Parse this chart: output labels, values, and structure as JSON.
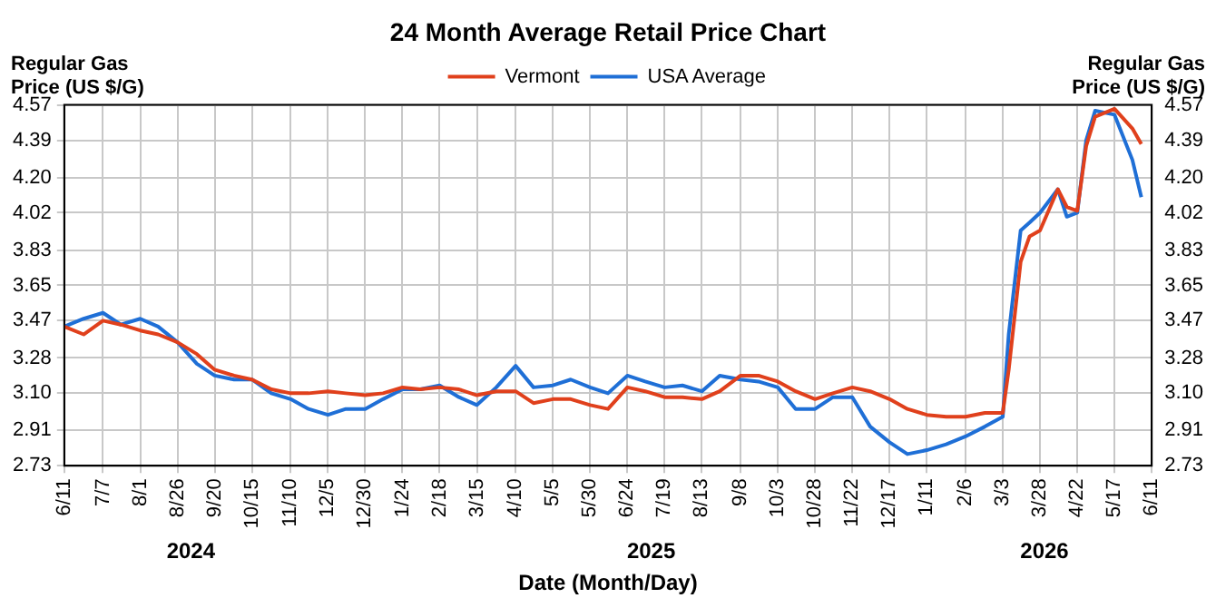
{
  "chart_data": {
    "type": "line",
    "title": "24 Month Average Retail Price Chart",
    "xlabel": "Date (Month/Day)",
    "ylabel": "Regular Gas Price (US $/G)",
    "y2label": "Regular Gas Price (US $/G)",
    "xlim": [
      "2024-06-11",
      "2026-06-11"
    ],
    "xticks": [
      {
        "value": "2024-06-11",
        "label": "6/11"
      },
      {
        "value": "2024-07-07",
        "label": "7/7"
      },
      {
        "value": "2024-08-01",
        "label": "8/1"
      },
      {
        "value": "2024-08-26",
        "label": "8/26"
      },
      {
        "value": "2024-09-20",
        "label": "9/20"
      },
      {
        "value": "2024-10-15",
        "label": "10/15"
      },
      {
        "value": "2024-11-10",
        "label": "11/10"
      },
      {
        "value": "2024-12-05",
        "label": "12/5"
      },
      {
        "value": "2024-12-30",
        "label": "12/30"
      },
      {
        "value": "2025-01-24",
        "label": "1/24"
      },
      {
        "value": "2025-02-18",
        "label": "2/18"
      },
      {
        "value": "2025-03-15",
        "label": "3/15"
      },
      {
        "value": "2025-04-10",
        "label": "4/10"
      },
      {
        "value": "2025-05-05",
        "label": "5/5"
      },
      {
        "value": "2025-05-30",
        "label": "5/30"
      },
      {
        "value": "2025-06-24",
        "label": "6/24"
      },
      {
        "value": "2025-07-19",
        "label": "7/19"
      },
      {
        "value": "2025-08-13",
        "label": "8/13"
      },
      {
        "value": "2025-09-08",
        "label": "9/8"
      },
      {
        "value": "2025-10-03",
        "label": "10/3"
      },
      {
        "value": "2025-10-28",
        "label": "10/28"
      },
      {
        "value": "2025-11-22",
        "label": "11/22"
      },
      {
        "value": "2025-12-17",
        "label": "12/17"
      },
      {
        "value": "2026-01-11",
        "label": "1/11"
      },
      {
        "value": "2026-02-06",
        "label": "2/6"
      },
      {
        "value": "2026-03-03",
        "label": "3/3"
      },
      {
        "value": "2026-03-28",
        "label": "3/28"
      },
      {
        "value": "2026-04-22",
        "label": "4/22"
      },
      {
        "value": "2026-05-17",
        "label": "5/17"
      },
      {
        "value": "2026-06-11",
        "label": "6/11"
      }
    ],
    "x2lim": [
      "2024-06-11",
      "2026-06-11"
    ],
    "x2ticks": [
      {
        "value": "2024-09-04",
        "label": "2024"
      },
      {
        "value": "2025-07-10",
        "label": "2025"
      },
      {
        "value": "2026-03-31",
        "label": "2026"
      }
    ],
    "ylim": [
      2.73,
      4.57
    ],
    "yticks": [
      2.73,
      2.91,
      {
        "value": 3.1,
        "label": "3.10"
      },
      3.28,
      3.47,
      3.65,
      3.83,
      4.02,
      {
        "value": 4.2,
        "label": "4.20"
      },
      4.39,
      4.57
    ],
    "y2lim": [
      2.73,
      4.57
    ],
    "y2ticks": [
      2.73,
      2.91,
      {
        "value": 3.1,
        "label": "3.10"
      },
      3.28,
      3.47,
      3.65,
      3.83,
      4.02,
      {
        "value": 4.2,
        "label": "4.20"
      },
      4.39,
      4.57
    ],
    "grid": true,
    "legend": "top",
    "marker": "none",
    "line_style": "solid",
    "x": [
      "2024-06-11",
      "2024-06-24",
      "2024-07-07",
      "2024-07-19",
      "2024-08-01",
      "2024-08-13",
      "2024-08-26",
      "2024-09-08",
      "2024-09-20",
      "2024-10-03",
      "2024-10-15",
      "2024-10-28",
      "2024-11-10",
      "2024-11-22",
      "2024-12-05",
      "2024-12-17",
      "2024-12-30",
      "2025-01-11",
      "2025-01-24",
      "2025-02-05",
      "2025-02-18",
      "2025-03-03",
      "2025-03-15",
      "2025-03-28",
      "2025-04-10",
      "2025-04-22",
      "2025-05-05",
      "2025-05-17",
      "2025-05-30",
      "2025-06-11",
      "2025-06-24",
      "2025-07-06",
      "2025-07-19",
      "2025-07-31",
      "2025-08-13",
      "2025-08-25",
      "2025-09-08",
      "2025-09-20",
      "2025-10-03",
      "2025-10-15",
      "2025-10-28",
      "2025-11-09",
      "2025-11-22",
      "2025-12-04",
      "2025-12-17",
      "2025-12-29",
      "2026-01-11",
      "2026-01-24",
      "2026-02-06",
      "2026-02-19",
      "2026-03-03",
      "2026-03-07",
      "2026-03-15",
      "2026-03-21",
      "2026-03-28",
      "2026-04-09",
      "2026-04-15",
      "2026-04-22",
      "2026-04-28",
      "2026-05-04",
      "2026-05-17",
      "2026-05-29",
      "2026-06-04"
    ],
    "series": [
      {
        "name": "Vermont",
        "color": "#e0401c",
        "values": [
          3.44,
          3.4,
          3.47,
          3.45,
          3.42,
          3.4,
          3.36,
          3.3,
          3.22,
          3.19,
          3.17,
          3.12,
          3.1,
          3.1,
          3.11,
          3.1,
          3.09,
          3.1,
          3.13,
          3.12,
          3.13,
          3.12,
          3.09,
          3.11,
          3.11,
          3.05,
          3.07,
          3.07,
          3.04,
          3.02,
          3.13,
          3.11,
          3.08,
          3.08,
          3.07,
          3.11,
          3.19,
          3.19,
          3.16,
          3.11,
          3.07,
          3.1,
          3.13,
          3.11,
          3.07,
          3.02,
          2.99,
          2.98,
          2.98,
          3.0,
          3.0,
          3.22,
          3.77,
          3.9,
          3.93,
          4.14,
          4.05,
          4.03,
          4.36,
          4.51,
          4.55,
          4.45,
          4.37
        ]
      },
      {
        "name": "USA Average",
        "color": "#1f6fd6",
        "values": [
          3.44,
          3.48,
          3.51,
          3.45,
          3.48,
          3.44,
          3.36,
          3.25,
          3.19,
          3.17,
          3.17,
          3.1,
          3.07,
          3.02,
          2.99,
          3.02,
          3.02,
          3.07,
          3.12,
          3.12,
          3.14,
          3.08,
          3.04,
          3.13,
          3.24,
          3.13,
          3.14,
          3.17,
          3.13,
          3.1,
          3.19,
          3.16,
          3.13,
          3.14,
          3.11,
          3.19,
          3.17,
          3.16,
          3.13,
          3.02,
          3.02,
          3.08,
          3.08,
          2.93,
          2.85,
          2.79,
          2.81,
          2.84,
          2.88,
          2.93,
          2.98,
          3.4,
          3.93,
          3.97,
          4.02,
          4.14,
          4.0,
          4.02,
          4.39,
          4.54,
          4.52,
          4.29,
          4.1
        ]
      }
    ]
  }
}
